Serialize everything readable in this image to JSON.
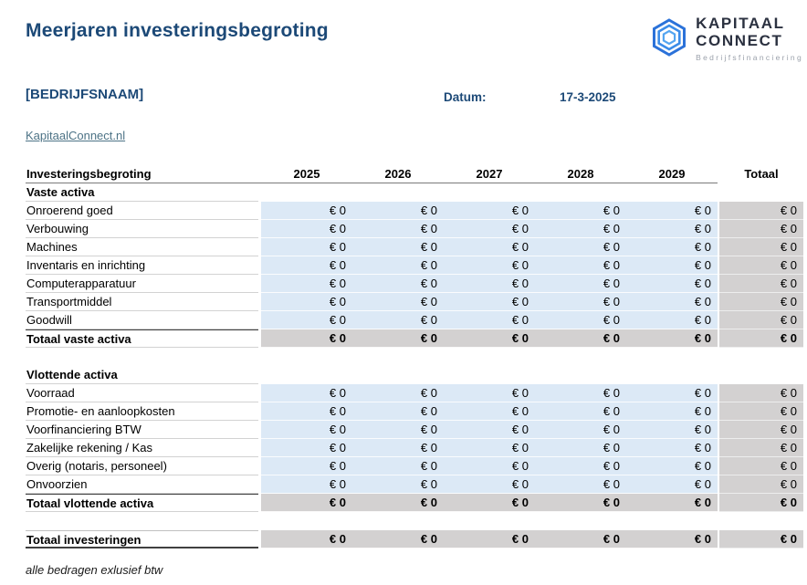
{
  "title": "Meerjaren investeringsbegroting",
  "logo": {
    "icon": "hexagon-spiral-icon",
    "line1": "KAPITAAL",
    "line2": "CONNECT",
    "tagline": "Bedrijfsfinanciering",
    "icon_color": "#2e7ce0",
    "text_color": "#2b3140",
    "tagline_color": "#9ba1ab"
  },
  "company_placeholder": "[BEDRIJFSNAAM]",
  "date": {
    "label": "Datum:",
    "value": "17-3-2025"
  },
  "website_link": "KapitaalConnect.nl",
  "footnote": "alle bedragen exlusief btw",
  "colors": {
    "accent_navy": "#1c4977",
    "cell_blue": "#dce9f6",
    "cell_gray": "#d3d1d1",
    "link": "#4d7386"
  },
  "table": {
    "header": {
      "label": "Investeringsbegroting",
      "years": [
        "2025",
        "2026",
        "2027",
        "2028",
        "2029"
      ],
      "total_label": "Totaal"
    },
    "sections": [
      {
        "heading": "Vaste activa",
        "rows": [
          {
            "label": "Onroerend goed",
            "values": [
              "€ 0",
              "€ 0",
              "€ 0",
              "€ 0",
              "€ 0",
              "€ 0"
            ]
          },
          {
            "label": "Verbouwing",
            "values": [
              "€ 0",
              "€ 0",
              "€ 0",
              "€ 0",
              "€ 0",
              "€ 0"
            ]
          },
          {
            "label": "Machines",
            "values": [
              "€ 0",
              "€ 0",
              "€ 0",
              "€ 0",
              "€ 0",
              "€ 0"
            ]
          },
          {
            "label": "Inventaris en inrichting",
            "values": [
              "€ 0",
              "€ 0",
              "€ 0",
              "€ 0",
              "€ 0",
              "€ 0"
            ]
          },
          {
            "label": "Computerapparatuur",
            "values": [
              "€ 0",
              "€ 0",
              "€ 0",
              "€ 0",
              "€ 0",
              "€ 0"
            ]
          },
          {
            "label": "Transportmiddel",
            "values": [
              "€ 0",
              "€ 0",
              "€ 0",
              "€ 0",
              "€ 0",
              "€ 0"
            ]
          },
          {
            "label": "Goodwill",
            "values": [
              "€ 0",
              "€ 0",
              "€ 0",
              "€ 0",
              "€ 0",
              "€ 0"
            ]
          }
        ],
        "total_row": {
          "label": "Totaal vaste activa",
          "values": [
            "€ 0",
            "€ 0",
            "€ 0",
            "€ 0",
            "€ 0",
            "€ 0"
          ]
        }
      },
      {
        "heading": "Vlottende activa",
        "rows": [
          {
            "label": "Voorraad",
            "values": [
              "€ 0",
              "€ 0",
              "€ 0",
              "€ 0",
              "€ 0",
              "€ 0"
            ]
          },
          {
            "label": "Promotie- en aanloopkosten",
            "values": [
              "€ 0",
              "€ 0",
              "€ 0",
              "€ 0",
              "€ 0",
              "€ 0"
            ]
          },
          {
            "label": "Voorfinanciering BTW",
            "values": [
              "€ 0",
              "€ 0",
              "€ 0",
              "€ 0",
              "€ 0",
              "€ 0"
            ]
          },
          {
            "label": "Zakelijke rekening / Kas",
            "values": [
              "€ 0",
              "€ 0",
              "€ 0",
              "€ 0",
              "€ 0",
              "€ 0"
            ]
          },
          {
            "label": "Overig (notaris, personeel)",
            "values": [
              "€ 0",
              "€ 0",
              "€ 0",
              "€ 0",
              "€ 0",
              "€ 0"
            ]
          },
          {
            "label": "Onvoorzien",
            "values": [
              "€ 0",
              "€ 0",
              "€ 0",
              "€ 0",
              "€ 0",
              "€ 0"
            ]
          }
        ],
        "total_row": {
          "label": "Totaal vlottende activa",
          "values": [
            "€ 0",
            "€ 0",
            "€ 0",
            "€ 0",
            "€ 0",
            "€ 0"
          ]
        }
      }
    ],
    "grand_total": {
      "label": "Totaal investeringen",
      "values": [
        "€ 0",
        "€ 0",
        "€ 0",
        "€ 0",
        "€ 0",
        "€ 0"
      ]
    }
  }
}
